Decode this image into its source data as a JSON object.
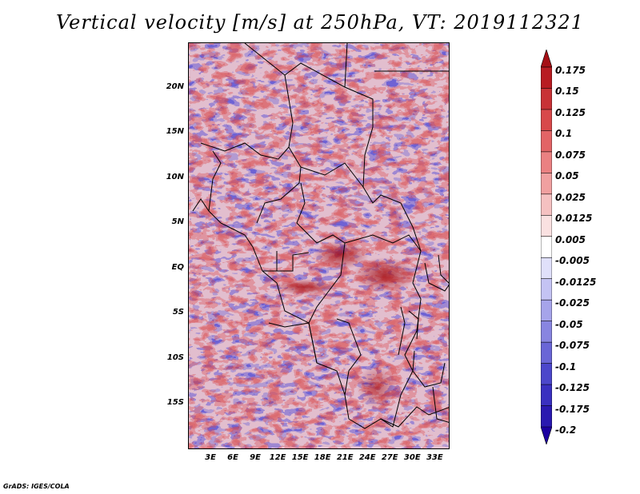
{
  "title": "Vertical velocity [m/s] at 250hPa, VT: 2019112321",
  "footer": "GrADS: IGES/COLA",
  "map": {
    "lat_labels": [
      "20N",
      "15N",
      "10N",
      "5N",
      "EQ",
      "5S",
      "10S",
      "15S"
    ],
    "lon_labels": [
      "3E",
      "6E",
      "9E",
      "12E",
      "15E",
      "18E",
      "21E",
      "24E",
      "27E",
      "30E",
      "33E"
    ],
    "lat_range": [
      -20,
      25
    ],
    "lon_range": [
      0,
      35
    ]
  },
  "colorbar": {
    "labels": [
      "0.175",
      "0.15",
      "0.125",
      "0.1",
      "0.075",
      "0.05",
      "0.025",
      "0.0125",
      "0.005",
      "-0.005",
      "-0.0125",
      "-0.025",
      "-0.05",
      "-0.075",
      "-0.1",
      "-0.125",
      "-0.175",
      "-0.2"
    ],
    "colors": [
      "#a50f15",
      "#b81c22",
      "#c83236",
      "#d8494b",
      "#e26466",
      "#ea8182",
      "#f0a0a0",
      "#f5c1c1",
      "#fae1e1",
      "#ffffff",
      "#e0e0fa",
      "#c4c3f3",
      "#a6a4ea",
      "#8885e0",
      "#6a66d6",
      "#4c47cb",
      "#3a30c0",
      "#2a19b0",
      "#1c00a0"
    ]
  }
}
